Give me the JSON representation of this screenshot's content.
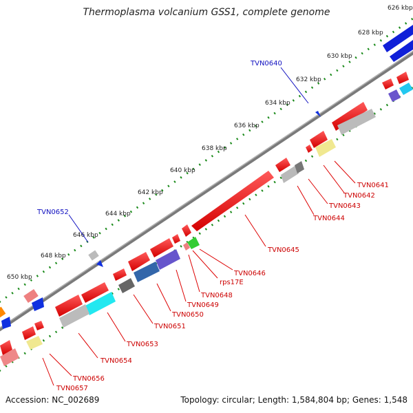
{
  "title": "Thermoplasma volcanium GSS1, complete genome",
  "footer": {
    "accession": "Accession: NC_002689",
    "summary": "Topology: circular; Length: 1,584,804 bp; Genes: 1,548"
  },
  "colors": {
    "ruler_tick": "#1a8a1a",
    "backbone": "#888888",
    "gene_label": "#cc0000",
    "blue_label": "#1010c0",
    "forward_gene": "#ee1111",
    "blue_gene": "#1030d0"
  },
  "scale_labels": [
    "626 kbp",
    "628 kbp",
    "630 kbp",
    "632 kbp",
    "634 kbp",
    "636 kbp",
    "638 kbp",
    "640 kbp",
    "642 kbp",
    "644 kbp",
    "646 kbp",
    "648 kbp",
    "650 kbp"
  ],
  "gene_labels": [
    "TVN0641",
    "TVN0642",
    "TVN0643",
    "TVN0644",
    "TVN0645",
    "TVN0646",
    "rps17E",
    "TVN0648",
    "TVN0649",
    "TVN0650",
    "TVN0651",
    "TVN0653",
    "TVN0654",
    "TVN0656",
    "TVN0657"
  ],
  "top_labels": [
    "TVN0640",
    "TVN0652"
  ]
}
